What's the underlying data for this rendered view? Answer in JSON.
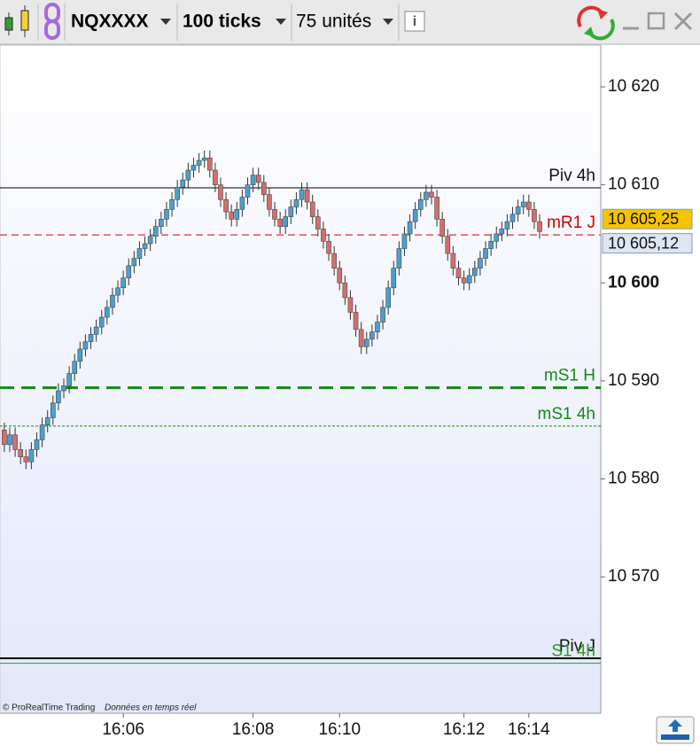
{
  "toolbar": {
    "instrument": "NQXXXX",
    "interval": "100 ticks",
    "units": "75 unités"
  },
  "chart_data": {
    "type": "candlestick",
    "open": [
      10585,
      10583.5,
      10584.5,
      10583,
      10582.25,
      10581.75,
      10583,
      10584,
      10585.5,
      10586.25,
      10587.75,
      10589,
      10589.5,
      10590.75,
      10592,
      10593.25,
      10594,
      10594.75,
      10595.5,
      10596.5,
      10597.5,
      10598.75,
      10599.5,
      10600.5,
      10601.75,
      10602.5,
      10603.5,
      10604,
      10604.75,
      10605.75,
      10606.5,
      10607.5,
      10608.5,
      10609.75,
      10610.5,
      10611.5,
      10612,
      10612.5,
      10612.75,
      10611.5,
      10610,
      10608.5,
      10607.25,
      10606.5,
      10607.5,
      10608.75,
      10610,
      10611,
      10610.25,
      10609,
      10607.5,
      10606.5,
      10605.75,
      10606.75,
      10607.75,
      10608.5,
      10609.5,
      10608.25,
      10606.75,
      10605.5,
      10604.25,
      10603,
      10601.5,
      10600,
      10598.5,
      10597,
      10595.25,
      10593.5,
      10594.25,
      10595,
      10596,
      10597.5,
      10599.5,
      10601.5,
      10603.5,
      10605,
      10606.25,
      10607.5,
      10608.5,
      10609.25,
      10608.75,
      10606.5,
      10604.75,
      10603,
      10601.5,
      10600.5,
      10600,
      10600.75,
      10601.5,
      10602.5,
      10603.5,
      10604.25,
      10605,
      10605.5,
      10606.25,
      10607,
      10607.75,
      10608.25,
      10607.5,
      10606.25
    ],
    "high": [
      10585.75,
      10585.25,
      10585.25,
      10583.75,
      10583,
      10583.75,
      10584.75,
      10586.25,
      10587,
      10588.5,
      10589.75,
      10590.25,
      10591.5,
      10592.75,
      10594,
      10594.75,
      10595.5,
      10596.25,
      10597.25,
      10598.25,
      10599.5,
      10600.25,
      10601.25,
      10602.5,
      10603.25,
      10604.25,
      10604.75,
      10605.5,
      10606.5,
      10607.25,
      10608.25,
      10609.25,
      10610.5,
      10611.25,
      10612.25,
      10612.75,
      10613.25,
      10613.5,
      10613.5,
      10612.25,
      10610.75,
      10609.25,
      10608,
      10608.25,
      10609.5,
      10610.75,
      10611.75,
      10611.75,
      10611,
      10609.75,
      10608.25,
      10607.25,
      10607.5,
      10608.5,
      10609.25,
      10610.25,
      10610.25,
      10609,
      10607.5,
      10606.25,
      10605,
      10603.75,
      10602.25,
      10600.75,
      10599.25,
      10597.75,
      10596,
      10595,
      10595.75,
      10596.75,
      10598.25,
      10600.25,
      10602.25,
      10604.25,
      10605.75,
      10607,
      10608.25,
      10609.25,
      10610,
      10610,
      10609.5,
      10607.25,
      10605.5,
      10603.75,
      10602.25,
      10601.25,
      10601.5,
      10602.25,
      10603.25,
      10604.25,
      10605,
      10605.75,
      10606.25,
      10607,
      10607.75,
      10608.5,
      10609,
      10609,
      10608.25,
      10607
    ],
    "low": [
      10582.75,
      10582.75,
      10582.25,
      10581.5,
      10581,
      10581,
      10582.25,
      10583.25,
      10584.75,
      10585.5,
      10587,
      10588.25,
      10588.75,
      10590,
      10591.25,
      10592.5,
      10593.25,
      10594,
      10594.75,
      10595.75,
      10596.75,
      10598,
      10598.75,
      10599.75,
      10601,
      10601.75,
      10602.75,
      10603.25,
      10604,
      10605,
      10605.75,
      10606.75,
      10607.75,
      10609,
      10609.75,
      10610.75,
      10611.25,
      10611.75,
      10610.75,
      10609.25,
      10607.75,
      10606.5,
      10605.75,
      10605.75,
      10606.75,
      10608,
      10609.25,
      10609.5,
      10608.25,
      10606.75,
      10605.75,
      10605,
      10605,
      10606,
      10607,
      10607.75,
      10607.5,
      10606,
      10604.75,
      10603.5,
      10602.25,
      10600.75,
      10599.25,
      10597.75,
      10596.25,
      10594.5,
      10592.75,
      10592.75,
      10593.5,
      10594.25,
      10595.25,
      10596.75,
      10598.75,
      10600.75,
      10602.75,
      10604.25,
      10605.5,
      10606.75,
      10607.75,
      10608,
      10605.75,
      10604,
      10602.25,
      10600.75,
      10599.75,
      10599.25,
      10599.25,
      10600,
      10600.75,
      10601.75,
      10602.75,
      10603.5,
      10604.25,
      10604.75,
      10605.5,
      10606.25,
      10607,
      10606.75,
      10605.5,
      10604.5
    ],
    "close": [
      10583.5,
      10584.5,
      10583,
      10582.25,
      10581.75,
      10583,
      10584,
      10585.5,
      10586.25,
      10587.75,
      10589,
      10589.5,
      10590.75,
      10592,
      10593.25,
      10594,
      10594.75,
      10595.5,
      10596.5,
      10597.5,
      10598.75,
      10599.5,
      10600.5,
      10601.75,
      10602.5,
      10603.5,
      10604,
      10604.75,
      10605.75,
      10606.5,
      10607.5,
      10608.5,
      10609.75,
      10610.5,
      10611.5,
      10612,
      10612.5,
      10612.75,
      10611.5,
      10610,
      10608.5,
      10607.25,
      10606.5,
      10607.5,
      10608.75,
      10610,
      10611,
      10610.25,
      10609,
      10607.5,
      10606.5,
      10605.75,
      10606.75,
      10607.75,
      10608.5,
      10609.5,
      10608.25,
      10606.75,
      10605.5,
      10604.25,
      10603,
      10601.5,
      10600,
      10598.5,
      10597,
      10595.25,
      10593.5,
      10594.25,
      10595,
      10596,
      10597.5,
      10599.5,
      10601.5,
      10603.5,
      10605,
      10606.25,
      10607.5,
      10608.5,
      10609.25,
      10608.75,
      10606.5,
      10604.75,
      10603,
      10601.5,
      10600.5,
      10600,
      10600.75,
      10601.5,
      10602.5,
      10603.5,
      10604.25,
      10605,
      10605.5,
      10606.25,
      10607,
      10607.75,
      10608.25,
      10607.5,
      10606.25,
      10605.25
    ],
    "up_color": "#4aa0d0",
    "down_color": "#d66e6c",
    "xlim": [
      -0.8,
      110.3
    ],
    "xticks": [
      {
        "value": 22,
        "label": "16:06"
      },
      {
        "value": 46,
        "label": "16:08"
      },
      {
        "value": 62,
        "label": "16:10"
      },
      {
        "value": 85,
        "label": "16:12"
      },
      {
        "value": 97,
        "label": "16:14"
      }
    ],
    "ylim": [
      10556.1,
      10624.25
    ],
    "yticks": [
      {
        "value": 10570,
        "label": "10 570"
      },
      {
        "value": 10580,
        "label": "10 580"
      },
      {
        "value": 10590,
        "label": "10 590"
      },
      {
        "value": 10600,
        "label": "10 600"
      },
      {
        "value": 10610,
        "label": "10 610"
      },
      {
        "value": 10620,
        "label": "10 620"
      }
    ],
    "levels": [
      {
        "name": "Piv 4h",
        "value": 10609.7,
        "color": "#000000",
        "style": "solid"
      },
      {
        "name": "mR1 J",
        "value": 10604.9,
        "color": "#cc0000",
        "style": "dashed"
      },
      {
        "name": "mS1 H",
        "value": 10589.3,
        "color": "#138a13",
        "style": "bold-dashed"
      },
      {
        "name": "mS1 4h",
        "value": 10585.4,
        "color": "#138a13",
        "style": "dotted"
      },
      {
        "name": "Piv J",
        "value": 10561.7,
        "color": "#000000",
        "style": "bold"
      },
      {
        "name": "S1 4h",
        "value": 10561.2,
        "color": "#2a9a2a",
        "style": "solid"
      }
    ],
    "price_tags": [
      {
        "value": 10605.25,
        "label": "10 605,25",
        "color": "#f5c400"
      },
      {
        "value": 10605.12,
        "label": "10 605,12",
        "color": "#dde6f5"
      }
    ]
  },
  "footer": {
    "copyright": "© ProRealTime Trading",
    "status": "Données en temps réel"
  }
}
